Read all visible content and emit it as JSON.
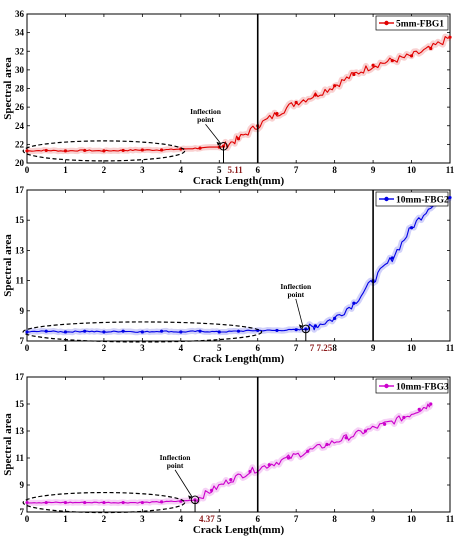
{
  "chart_data": [
    {
      "type": "line",
      "xlabel": "Crack Length(mm)",
      "ylabel": "Spectral area",
      "xlim": [
        0,
        11
      ],
      "ylim": [
        20,
        36
      ],
      "xticks": [
        "0",
        "1",
        "2",
        "3",
        "4",
        "5",
        "6",
        "7",
        "8",
        "9",
        "10",
        "11"
      ],
      "yticks": [
        "20",
        "22",
        "24",
        "26",
        "28",
        "30",
        "32",
        "34",
        "36"
      ],
      "series": [
        {
          "name": "5mm-FBG1",
          "color": "#e00000",
          "x": [
            0,
            0.5,
            1,
            1.5,
            2,
            2.5,
            3,
            3.5,
            4,
            4.5,
            5,
            5.11,
            5.5,
            6,
            6.5,
            7,
            7.5,
            8,
            8.5,
            9,
            9.5,
            10,
            10.5,
            11
          ],
          "y": [
            21.3,
            21.35,
            21.3,
            21.35,
            21.3,
            21.35,
            21.4,
            21.4,
            21.5,
            21.6,
            21.7,
            21.8,
            22.6,
            24.0,
            25.3,
            26.5,
            27.3,
            28.3,
            29.5,
            30.5,
            31.0,
            31.5,
            32.3,
            33.5
          ]
        }
      ],
      "vline": 6,
      "inflection_x": 5.11,
      "inflection_label": "5.11",
      "annotation": "Inflection point",
      "grid": false,
      "legend_position": "top-right"
    },
    {
      "type": "line",
      "xlabel": "Crack Length(mm)",
      "ylabel": "Spectral area",
      "xlim": [
        0,
        11
      ],
      "ylim": [
        7,
        17
      ],
      "xticks": [
        "0",
        "1",
        "2",
        "3",
        "4",
        "5",
        "6",
        "7",
        "8",
        "9",
        "10",
        "11"
      ],
      "yticks": [
        "7",
        "9",
        "11",
        "13",
        "15",
        "17"
      ],
      "series": [
        {
          "name": "10mm-FBG2",
          "color": "#0000e6",
          "x": [
            0,
            0.5,
            1,
            1.5,
            2,
            2.5,
            3,
            3.5,
            4,
            4.5,
            5,
            5.5,
            6,
            6.5,
            7,
            7.25,
            7.5,
            8,
            8.5,
            9,
            9.5,
            10,
            10.5,
            11
          ],
          "y": [
            7.6,
            7.65,
            7.6,
            7.65,
            7.6,
            7.65,
            7.6,
            7.65,
            7.6,
            7.65,
            7.6,
            7.65,
            7.7,
            7.7,
            7.75,
            7.8,
            8.0,
            8.5,
            9.5,
            11.0,
            12.5,
            14.5,
            16.0,
            16.5
          ]
        }
      ],
      "vline": 9,
      "inflection_x": 7.25,
      "inflection_label": "7 7.25",
      "annotation": "Inflection point",
      "grid": false,
      "legend_position": "top-right"
    },
    {
      "type": "line",
      "xlabel": "Crack Length(mm)",
      "ylabel": "Spectral area",
      "xlim": [
        0,
        11
      ],
      "ylim": [
        7,
        17
      ],
      "xticks": [
        "0",
        "1",
        "2",
        "3",
        "4",
        "5",
        "6",
        "7",
        "8",
        "9",
        "10",
        "11"
      ],
      "yticks": [
        "7",
        "9",
        "11",
        "13",
        "15",
        "17"
      ],
      "series": [
        {
          "name": "10mm-FBG3",
          "color": "#cc00cc",
          "x": [
            0,
            0.5,
            1,
            1.5,
            2,
            2.5,
            3,
            3.5,
            4,
            4.37,
            4.8,
            5.3,
            5.8,
            6.3,
            6.8,
            7.3,
            7.8,
            8.3,
            8.8,
            9.3,
            9.8,
            10.2,
            10.5
          ],
          "y": [
            7.7,
            7.7,
            7.7,
            7.7,
            7.7,
            7.7,
            7.7,
            7.75,
            7.8,
            7.9,
            8.6,
            9.4,
            10.0,
            10.5,
            11.0,
            11.5,
            12.0,
            12.5,
            13.0,
            13.5,
            14.0,
            14.6,
            15.0
          ]
        }
      ],
      "vline": 6,
      "inflection_x": 4.37,
      "inflection_label": "4.37",
      "annotation": "Inflection point",
      "grid": false,
      "legend_position": "top-right"
    }
  ]
}
